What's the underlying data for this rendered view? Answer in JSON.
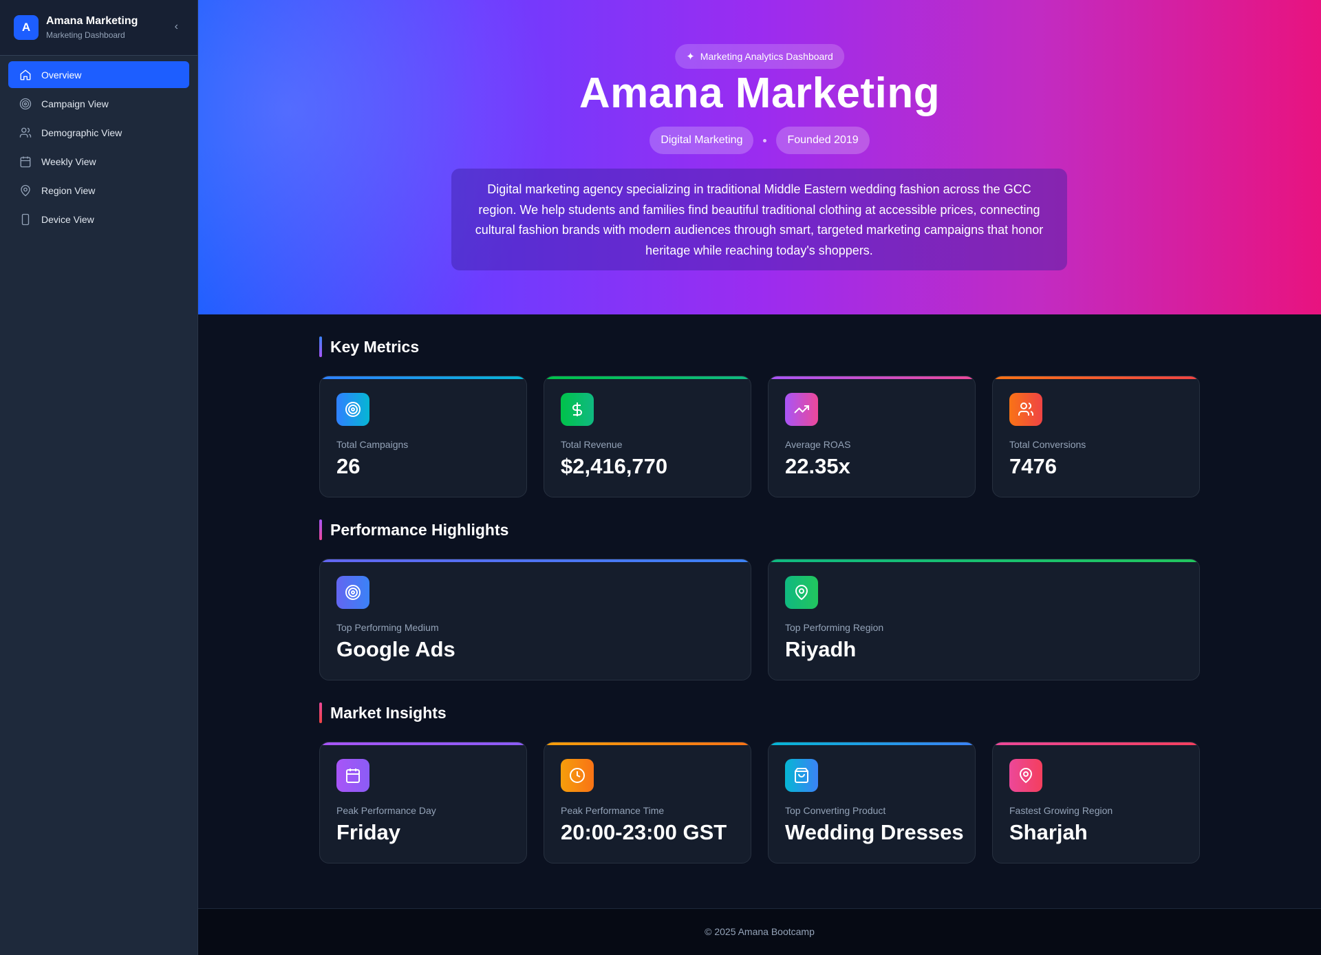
{
  "sidebar": {
    "logo_letter": "A",
    "title": "Amana Marketing",
    "subtitle": "Marketing Dashboard",
    "items": [
      {
        "label": "Overview",
        "icon": "home-icon"
      },
      {
        "label": "Campaign View",
        "icon": "target-icon"
      },
      {
        "label": "Demographic View",
        "icon": "users-icon"
      },
      {
        "label": "Weekly View",
        "icon": "calendar-icon"
      },
      {
        "label": "Region View",
        "icon": "map-pin-icon"
      },
      {
        "label": "Device View",
        "icon": "smartphone-icon"
      }
    ]
  },
  "hero": {
    "badge": "Marketing Analytics Dashboard",
    "title": "Amana Marketing",
    "pills": [
      "Digital Marketing",
      "Founded 2019"
    ],
    "description": "Digital marketing agency specializing in traditional Middle Eastern wedding fashion across the GCC region. We help students and families find beautiful traditional clothing at accessible prices, connecting cultural fashion brands with modern audiences through smart, targeted marketing campaigns that honor heritage while reaching today's shoppers."
  },
  "key_metrics": {
    "title": "Key Metrics",
    "cards": [
      {
        "label": "Total Campaigns",
        "value": "26"
      },
      {
        "label": "Total Revenue",
        "value": "$2,416,770"
      },
      {
        "label": "Average ROAS",
        "value": "22.35x"
      },
      {
        "label": "Total Conversions",
        "value": "7476"
      }
    ]
  },
  "highlights": {
    "title": "Performance Highlights",
    "cards": [
      {
        "label": "Top Performing Medium",
        "value": "Google Ads"
      },
      {
        "label": "Top Performing Region",
        "value": "Riyadh"
      }
    ]
  },
  "insights": {
    "title": "Market Insights",
    "cards": [
      {
        "label": "Peak Performance Day",
        "value": "Friday"
      },
      {
        "label": "Peak Performance Time",
        "value": "20:00-23:00 GST"
      },
      {
        "label": "Top Converting Product",
        "value": "Wedding Dresses"
      },
      {
        "label": "Fastest Growing Region",
        "value": "Sharjah"
      }
    ]
  },
  "footer": "© 2025 Amana Bootcamp",
  "colors": {
    "accent": "#1d5eff",
    "sidebar": "#1e293b",
    "background": "#0b1120"
  }
}
